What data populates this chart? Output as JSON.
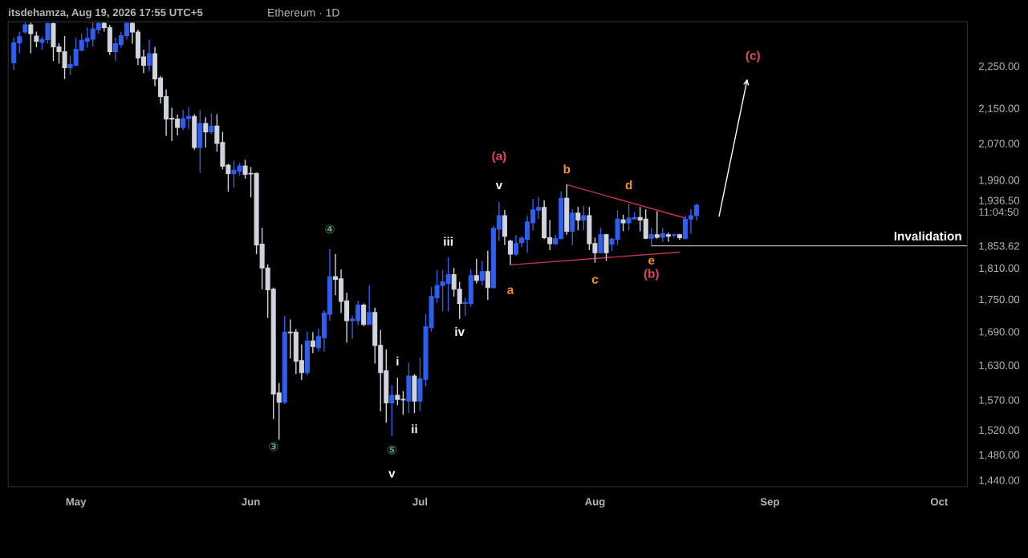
{
  "chart_data": {
    "type": "candlestick",
    "title": "Ethereum · 1D",
    "subtitle": "itsdehamza, Aug 19, 2026 17:55 UTC+5",
    "colors": [
      "#2f5ff0",
      "#2f5ff0",
      "#2f5ff0",
      "#d1d4dc",
      "#d1d4dc",
      "#2f5ff0",
      "#2f5ff0",
      "#d1d4dc",
      "#d1d4dc",
      "#d1d4dc",
      "#2f5ff0",
      "#2f5ff0",
      "#2f5ff0",
      "#2f5ff0",
      "#2f5ff0",
      "#2f5ff0",
      "#d1d4dc",
      "#d1d4dc",
      "#2f5ff0",
      "#2f5ff0",
      "#2f5ff0",
      "#d1d4dc",
      "#d1d4dc",
      "#d1d4dc",
      "#2f5ff0",
      "#d1d4dc",
      "#d1d4dc",
      "#d1d4dc",
      "#d1d4dc",
      "#d1d4dc",
      "#2f5ff0",
      "#2f5ff0",
      "#d1d4dc",
      "#2f5ff0",
      "#d1d4dc",
      "#2f5ff0",
      "#d1d4dc",
      "#d1d4dc",
      "#d1d4dc",
      "#2f5ff0",
      "#2f5ff0",
      "#d1d4dc",
      "#d1d4dc",
      "#d1d4dc",
      "#d1d4dc",
      "#d1d4dc",
      "#d1d4dc",
      "#d1d4dc",
      "#2f5ff0",
      "#d1d4dc",
      "#d1d4dc",
      "#d1d4dc",
      "#2f5ff0",
      "#d1d4dc",
      "#2f5ff0",
      "#2f5ff0",
      "#2f5ff0",
      "#d1d4dc",
      "#d1d4dc",
      "#d1d4dc",
      "#2f5ff0",
      "#2f5ff0",
      "#d1d4dc",
      "#2f5ff0",
      "#d1d4dc",
      "#d1d4dc",
      "#d1d4dc",
      "#2f5ff0",
      "#d1d4dc",
      "#d1d4dc",
      "#2f5ff0",
      "#d1d4dc",
      "#2f5ff0",
      "#2f5ff0",
      "#2f5ff0",
      "#2f5ff0",
      "#2f5ff0",
      "#2f5ff0",
      "#d1d4dc",
      "#d1d4dc",
      "#2f5ff0",
      "#2f5ff0",
      "#d1d4dc",
      "#2f5ff0",
      "#d1d4dc",
      "#2f5ff0",
      "#2f5ff0",
      "#d1d4dc",
      "#d1d4dc",
      "#2f5ff0",
      "#2f5ff0",
      "#2f5ff0",
      "#2f5ff0",
      "#2f5ff0",
      "#d1d4dc",
      "#d1d4dc",
      "#2f5ff0",
      "#2f5ff0",
      "#d1d4dc",
      "#2f5ff0",
      "#d1d4dc",
      "#2f5ff0",
      "#d1d4dc",
      "#d1d4dc",
      "#2f5ff0",
      "#d1d4dc",
      "#2f5ff0",
      "#2f5ff0",
      "#d1d4dc",
      "#2f5ff0",
      "#2f5ff0",
      "#d1d4dc",
      "#d1d4dc",
      "#2f5ff0",
      "#d1d4dc",
      "#2f5ff0",
      "#d1d4dc",
      "#2f5ff0",
      "#d1d4dc",
      "#2f5ff0",
      "#2f5ff0",
      "#2f5ff0"
    ],
    "x": [
      "2026-04-20",
      "2026-04-21",
      "2026-04-22",
      "2026-04-23",
      "2026-04-24",
      "2026-04-25",
      "2026-04-26",
      "2026-04-27",
      "2026-04-28",
      "2026-04-29",
      "2026-04-30",
      "2026-05-01",
      "2026-05-02",
      "2026-05-03",
      "2026-05-04",
      "2026-05-05",
      "2026-05-06",
      "2026-05-07",
      "2026-05-08",
      "2026-05-09",
      "2026-05-10",
      "2026-05-11",
      "2026-05-12",
      "2026-05-13",
      "2026-05-14",
      "2026-05-15",
      "2026-05-16",
      "2026-05-17",
      "2026-05-18",
      "2026-05-19",
      "2026-05-20",
      "2026-05-21",
      "2026-05-22",
      "2026-05-23",
      "2026-05-24",
      "2026-05-25",
      "2026-05-26",
      "2026-05-27",
      "2026-05-28",
      "2026-05-29",
      "2026-05-30",
      "2026-05-31",
      "2026-06-01",
      "2026-06-02",
      "2026-06-03",
      "2026-06-04",
      "2026-06-05",
      "2026-06-06",
      "2026-06-07",
      "2026-06-08",
      "2026-06-09",
      "2026-06-10",
      "2026-06-11",
      "2026-06-12",
      "2026-06-13",
      "2026-06-14",
      "2026-06-15",
      "2026-06-16",
      "2026-06-17",
      "2026-06-18",
      "2026-06-19",
      "2026-06-20",
      "2026-06-21",
      "2026-06-22",
      "2026-06-23",
      "2026-06-24",
      "2026-06-25",
      "2026-06-26",
      "2026-06-27",
      "2026-06-28",
      "2026-06-29",
      "2026-06-30",
      "2026-07-01",
      "2026-07-02",
      "2026-07-03",
      "2026-07-04",
      "2026-07-05",
      "2026-07-06",
      "2026-07-07",
      "2026-07-08",
      "2026-07-09",
      "2026-07-10",
      "2026-07-11",
      "2026-07-12",
      "2026-07-13",
      "2026-07-14",
      "2026-07-15",
      "2026-07-16",
      "2026-07-17",
      "2026-07-18",
      "2026-07-19",
      "2026-07-20",
      "2026-07-21",
      "2026-07-22",
      "2026-07-23",
      "2026-07-24",
      "2026-07-25",
      "2026-07-26",
      "2026-07-27",
      "2026-07-28",
      "2026-07-29",
      "2026-07-30",
      "2026-07-31",
      "2026-08-01",
      "2026-08-02",
      "2026-08-03",
      "2026-08-04",
      "2026-08-05",
      "2026-08-06",
      "2026-08-07",
      "2026-08-08",
      "2026-08-09",
      "2026-08-10",
      "2026-08-11",
      "2026-08-12",
      "2026-08-13",
      "2026-08-14",
      "2026-08-15",
      "2026-08-16",
      "2026-08-17",
      "2026-08-18",
      "2026-08-19"
    ],
    "ohlc": [
      [
        2258,
        2320,
        2240,
        2307
      ],
      [
        2307,
        2335,
        2281,
        2322
      ],
      [
        2334,
        2358,
        2330,
        2352
      ],
      [
        2352,
        2358,
        2281,
        2330
      ],
      [
        2324,
        2335,
        2296,
        2311
      ],
      [
        2308,
        2322,
        2290,
        2315
      ],
      [
        2315,
        2358,
        2305,
        2355
      ],
      [
        2355,
        2358,
        2262,
        2297
      ],
      [
        2297,
        2306,
        2256,
        2285
      ],
      [
        2285,
        2324,
        2219,
        2246
      ],
      [
        2246,
        2275,
        2229,
        2254
      ],
      [
        2252,
        2320,
        2250,
        2291
      ],
      [
        2289,
        2330,
        2285,
        2313
      ],
      [
        2311,
        2345,
        2295,
        2318
      ],
      [
        2316,
        2358,
        2298,
        2342
      ],
      [
        2340,
        2358,
        2330,
        2356
      ],
      [
        2356,
        2358,
        2335,
        2345
      ],
      [
        2345,
        2352,
        2277,
        2285
      ],
      [
        2285,
        2320,
        2262,
        2305
      ],
      [
        2303,
        2335,
        2295,
        2325
      ],
      [
        2325,
        2358,
        2315,
        2356
      ],
      [
        2356,
        2358,
        2305,
        2334
      ],
      [
        2334,
        2340,
        2252,
        2270
      ],
      [
        2272,
        2290,
        2233,
        2252
      ],
      [
        2252,
        2315,
        2237,
        2280
      ],
      [
        2280,
        2297,
        2202,
        2219
      ],
      [
        2221,
        2226,
        2161,
        2177
      ],
      [
        2177,
        2194,
        2087,
        2125
      ],
      [
        2127,
        2151,
        2075,
        2125
      ],
      [
        2125,
        2135,
        2088,
        2106
      ],
      [
        2106,
        2146,
        2100,
        2126
      ],
      [
        2126,
        2153,
        2102,
        2131
      ],
      [
        2131,
        2136,
        2056,
        2061
      ],
      [
        2061,
        2146,
        2006,
        2115
      ],
      [
        2115,
        2129,
        2061,
        2096
      ],
      [
        2096,
        2138,
        2091,
        2109
      ],
      [
        2109,
        2136,
        2052,
        2070
      ],
      [
        2072,
        2096,
        2013,
        2020
      ],
      [
        2022,
        2025,
        1965,
        2004
      ],
      [
        2004,
        2032,
        1974,
        2011
      ],
      [
        2009,
        2027,
        1999,
        2020
      ],
      [
        2020,
        2034,
        1993,
        2002
      ],
      [
        2004,
        2018,
        1953,
        2003
      ],
      [
        2004,
        2006,
        1837,
        1855
      ],
      [
        1857,
        1890,
        1769,
        1810
      ],
      [
        1810,
        1817,
        1715,
        1768
      ],
      [
        1769,
        1772,
        1538,
        1580
      ],
      [
        1582,
        1599,
        1504,
        1566
      ],
      [
        1566,
        1719,
        1563,
        1689
      ],
      [
        1689,
        1712,
        1642,
        1688
      ],
      [
        1689,
        1695,
        1614,
        1637
      ],
      [
        1638,
        1667,
        1604,
        1617
      ],
      [
        1617,
        1690,
        1612,
        1673
      ],
      [
        1673,
        1689,
        1651,
        1663
      ],
      [
        1661,
        1696,
        1654,
        1681
      ],
      [
        1679,
        1729,
        1654,
        1724
      ],
      [
        1722,
        1847,
        1710,
        1793
      ],
      [
        1793,
        1837,
        1757,
        1788
      ],
      [
        1789,
        1807,
        1724,
        1746
      ],
      [
        1747,
        1762,
        1670,
        1710
      ],
      [
        1710,
        1719,
        1677,
        1713
      ],
      [
        1710,
        1747,
        1702,
        1739
      ],
      [
        1739,
        1742,
        1700,
        1703
      ],
      [
        1703,
        1776,
        1703,
        1725
      ],
      [
        1725,
        1734,
        1633,
        1665
      ],
      [
        1665,
        1693,
        1551,
        1617
      ],
      [
        1620,
        1658,
        1532,
        1565
      ],
      [
        1565,
        1595,
        1510,
        1578
      ],
      [
        1578,
        1608,
        1561,
        1571
      ],
      [
        1571,
        1585,
        1545,
        1570
      ],
      [
        1568,
        1634,
        1548,
        1611
      ],
      [
        1611,
        1614,
        1548,
        1568
      ],
      [
        1568,
        1643,
        1551,
        1606
      ],
      [
        1605,
        1722,
        1593,
        1699
      ],
      [
        1697,
        1773,
        1690,
        1755
      ],
      [
        1753,
        1806,
        1743,
        1776
      ],
      [
        1776,
        1806,
        1727,
        1783
      ],
      [
        1780,
        1831,
        1727,
        1797
      ],
      [
        1797,
        1810,
        1755,
        1769
      ],
      [
        1769,
        1783,
        1713,
        1742
      ],
      [
        1742,
        1753,
        1719,
        1744
      ],
      [
        1742,
        1808,
        1736,
        1795
      ],
      [
        1795,
        1828,
        1780,
        1786
      ],
      [
        1786,
        1824,
        1776,
        1803
      ],
      [
        1803,
        1844,
        1749,
        1772
      ],
      [
        1772,
        1894,
        1770,
        1889
      ],
      [
        1887,
        1943,
        1863,
        1915
      ],
      [
        1915,
        1927,
        1855,
        1873
      ],
      [
        1863,
        1866,
        1816,
        1837
      ],
      [
        1837,
        1875,
        1834,
        1858
      ],
      [
        1860,
        1873,
        1851,
        1869
      ],
      [
        1867,
        1915,
        1840,
        1902
      ],
      [
        1900,
        1950,
        1885,
        1927
      ],
      [
        1926,
        1954,
        1908,
        1932
      ],
      [
        1932,
        1947,
        1867,
        1870
      ],
      [
        1870,
        1906,
        1845,
        1858
      ],
      [
        1858,
        1875,
        1855,
        1868
      ],
      [
        1868,
        1965,
        1867,
        1951
      ],
      [
        1951,
        1980,
        1876,
        1883
      ],
      [
        1883,
        1928,
        1855,
        1920
      ],
      [
        1920,
        1933,
        1885,
        1906
      ],
      [
        1906,
        1935,
        1885,
        1915
      ],
      [
        1915,
        1933,
        1845,
        1858
      ],
      [
        1858,
        1870,
        1820,
        1840
      ],
      [
        1840,
        1890,
        1839,
        1876
      ],
      [
        1876,
        1878,
        1824,
        1840
      ],
      [
        1857,
        1870,
        1843,
        1867
      ],
      [
        1867,
        1926,
        1855,
        1908
      ],
      [
        1906,
        1917,
        1883,
        1900
      ],
      [
        1900,
        1940,
        1885,
        1910
      ],
      [
        1908,
        1922,
        1908,
        1911
      ],
      [
        1911,
        1933,
        1883,
        1906
      ],
      [
        1908,
        1928,
        1867,
        1869
      ],
      [
        1869,
        1890,
        1853,
        1876
      ],
      [
        1876,
        1924,
        1868,
        1871
      ],
      [
        1871,
        1890,
        1862,
        1878
      ],
      [
        1876,
        1880,
        1862,
        1873
      ],
      [
        1875,
        1878,
        1870,
        1876
      ],
      [
        1876,
        1878,
        1866,
        1870
      ],
      [
        1868,
        1915,
        1867,
        1908
      ],
      [
        1908,
        1928,
        1878,
        1915
      ],
      [
        1915,
        1940,
        1905,
        1936.5
      ]
    ],
    "series": [
      {
        "type": "line",
        "color": "#c8374a",
        "x": [
          "2026-07-17",
          "2026-08-16"
        ],
        "values": [
          1816,
          1841
        ]
      },
      {
        "type": "line",
        "color": "#c8374a",
        "x": [
          "2026-07-27",
          "2026-08-17"
        ],
        "values": [
          1980,
          1910
        ]
      },
      {
        "type": "line",
        "color": "#b2b5be",
        "x": [
          "2026-08-11",
          "2026-10-06"
        ],
        "values": [
          1853.62,
          1853.62
        ]
      }
    ],
    "annotations": [
      "(a)",
      "v",
      "b",
      "d",
      "iii",
      "a",
      "c",
      "e",
      "(b)",
      "iv",
      "i",
      "ii",
      "v",
      "③",
      "④",
      "⑤",
      "(c)",
      "Invalidation"
    ],
    "xlim": [
      "2026-04-19",
      "2026-10-06"
    ],
    "xticks": [
      {
        "value": "2026-05-01",
        "label": "May"
      },
      {
        "value": "2026-06-01",
        "label": "Jun"
      },
      {
        "value": "2026-07-01",
        "label": "Jul"
      },
      {
        "value": "2026-08-01",
        "label": "Aug"
      },
      {
        "value": "2026-09-01",
        "label": "Sep"
      },
      {
        "value": "2026-10-01",
        "label": "Oct"
      }
    ],
    "log": true,
    "ylim": [
      1430,
      2360
    ],
    "yticks": [
      {
        "value": 2250,
        "label": "2,250.00"
      },
      {
        "value": 2150,
        "label": "2,150.00"
      },
      {
        "value": 2070,
        "label": "2,070.00"
      },
      {
        "value": 1990,
        "label": "1,990.00"
      },
      {
        "value": 1936.5,
        "label": "1,936.50\n11:04:50"
      },
      {
        "value": 1853.62,
        "label": "1,853.62"
      },
      {
        "value": 1810,
        "label": "1,810.00"
      },
      {
        "value": 1750,
        "label": "1,750.00"
      },
      {
        "value": 1690,
        "label": "1,690.00"
      },
      {
        "value": 1630,
        "label": "1,630.00"
      },
      {
        "value": 1570,
        "label": "1,570.00"
      },
      {
        "value": 1520,
        "label": "1,520.00"
      },
      {
        "value": 1480,
        "label": "1,480.00"
      },
      {
        "value": 1440,
        "label": "1,440.00"
      }
    ],
    "grid": false
  }
}
